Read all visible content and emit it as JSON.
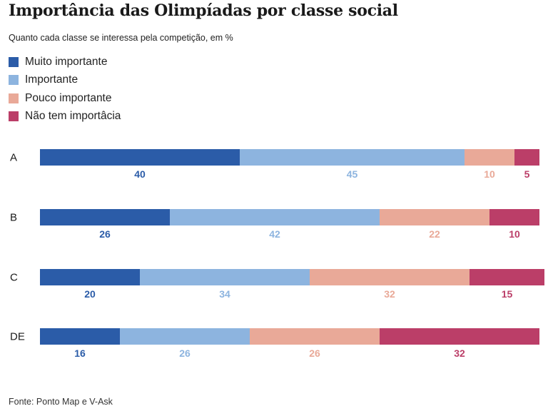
{
  "title": "Importância das Olimpíadas por classe social",
  "subtitle": "Quanto cada classe se interessa pela competição, em %",
  "source": "Fonte: Ponto Map e V-Ask",
  "colors": {
    "Muito importante": "#2b5ca8",
    "Importante": "#8db4df",
    "Pouco importante": "#e9a998",
    "Não tem importâcia": "#bb3e68"
  },
  "chart_data": {
    "type": "bar",
    "orientation": "horizontal",
    "stacked": true,
    "categories": [
      "A",
      "B",
      "C",
      "DE"
    ],
    "series": [
      {
        "name": "Muito importante",
        "values": [
          40,
          26,
          20,
          16
        ]
      },
      {
        "name": "Importante",
        "values": [
          45,
          42,
          34,
          26
        ]
      },
      {
        "name": "Pouco importante",
        "values": [
          10,
          22,
          32,
          26
        ]
      },
      {
        "name": "Não tem importâcia",
        "values": [
          5,
          10,
          15,
          32
        ]
      }
    ],
    "title": "Importância das Olimpíadas por classe social",
    "subtitle": "Quanto cada classe se interessa pela competição, em %",
    "legend_position": "top-left",
    "grid": false
  }
}
